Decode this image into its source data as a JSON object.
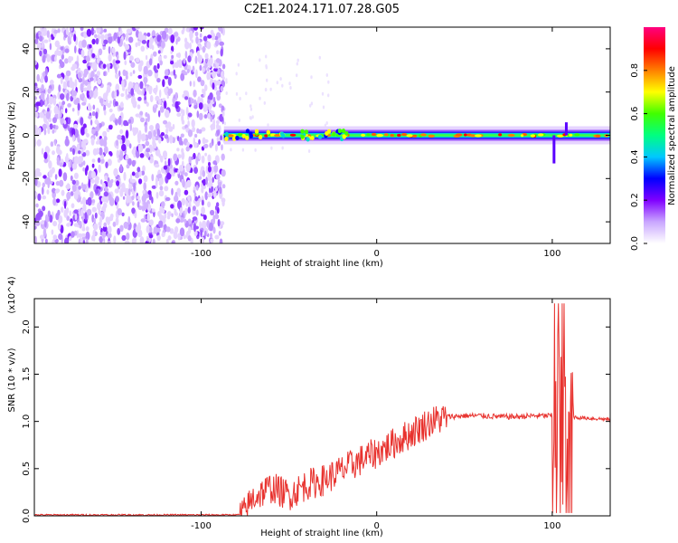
{
  "title": "C2E1.2024.171.07.28.G05",
  "chart_data": [
    {
      "type": "heatmap",
      "xlabel": "Height of straight line (km)",
      "ylabel": "Frequency (Hz)",
      "xlim": [
        -195,
        133
      ],
      "ylim": [
        -50,
        50
      ],
      "xticks": [
        -100,
        0,
        100
      ],
      "yticks": [
        -40,
        -20,
        0,
        20,
        40
      ],
      "noise_region_x": [
        -195,
        -87
      ],
      "signal_ridge": {
        "frequency_hz": 0,
        "x_start": -87,
        "x_end": 133,
        "notable_spikes": [
          {
            "x": 101,
            "frequency_hz_min": -13
          },
          {
            "x": 108,
            "frequency_hz_max": 6
          }
        ]
      },
      "colorbar": {
        "label": "Normalized spectral amplitude",
        "range": [
          0,
          1
        ],
        "ticks": [
          "0.0",
          "0.2",
          "0.4",
          "0.6",
          "0.8"
        ],
        "colormap": [
          "#ffffff",
          "#c9a6ff",
          "#8000ff",
          "#0000ff",
          "#00c8ff",
          "#00ff80",
          "#40ff00",
          "#ffff00",
          "#ff8000",
          "#ff0000",
          "#ff0080"
        ]
      }
    },
    {
      "type": "line",
      "xlabel": "Height of straight line (km)",
      "ylabel": "SNR (10 * v/v)",
      "y_multiplier": "(x10^4)",
      "xlim": [
        -195,
        133
      ],
      "ylim": [
        0,
        2.3
      ],
      "xticks": [
        -100,
        0,
        100
      ],
      "yticks": [
        "0.0",
        "0.5",
        "1.0",
        "1.5",
        "2.0"
      ],
      "color": "#e8322e",
      "series": [
        {
          "x": [
            -195,
            -160,
            -120,
            -90,
            -80,
            -76,
            -70,
            -60,
            -50,
            -40,
            -30,
            -20,
            -10,
            0,
            10,
            20,
            30,
            40,
            50,
            60,
            70,
            80,
            90,
            100,
            103,
            106,
            109,
            112,
            115,
            125,
            133
          ],
          "values": [
            0.01,
            0.01,
            0.01,
            0.01,
            0.01,
            0.02,
            0.2,
            0.3,
            0.22,
            0.33,
            0.38,
            0.48,
            0.58,
            0.67,
            0.77,
            0.88,
            0.99,
            1.05,
            1.06,
            1.06,
            1.05,
            1.05,
            1.06,
            1.06,
            1.1,
            1.0,
            1.2,
            1.05,
            1.04,
            1.03,
            1.02
          ]
        }
      ]
    }
  ]
}
